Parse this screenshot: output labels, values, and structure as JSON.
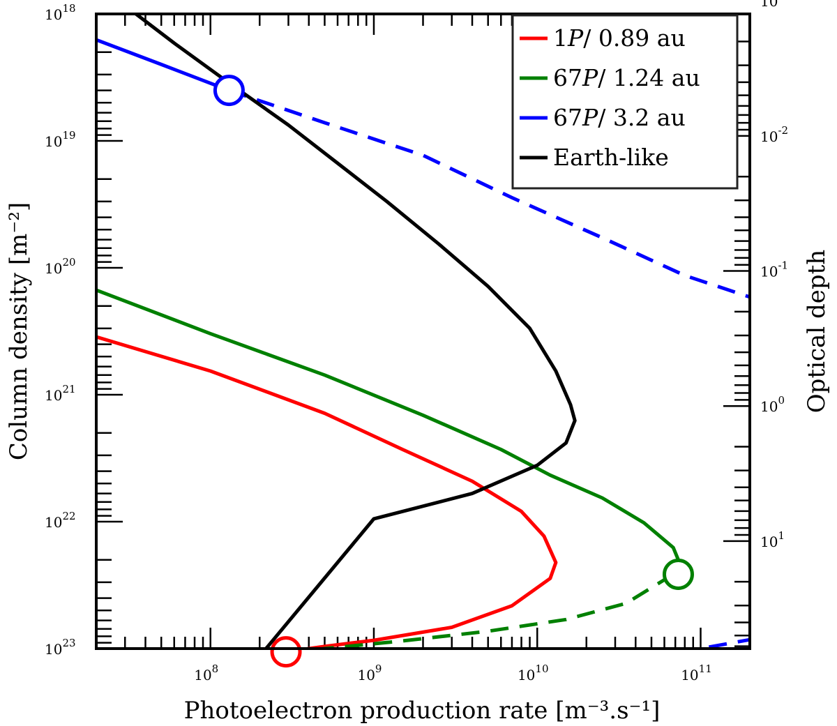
{
  "chart_data": {
    "type": "line",
    "title": "",
    "xlabel": "Photoelectron production rate [m⁻³.s⁻¹]",
    "ylabel": "Column density [m⁻²]",
    "y2label": "Optical depth",
    "xscale": "log",
    "yscale": "log",
    "y_inverted": true,
    "xlim": [
      20000000.0,
      200000000000.0
    ],
    "ylim": [
      1e+18,
      1e+23
    ],
    "y2lim": [
      0.00125,
      62.5
    ],
    "x_ticks": [
      {
        "value": 100000000.0,
        "label": "10",
        "exp": "8"
      },
      {
        "value": 1000000000.0,
        "label": "10",
        "exp": "9"
      },
      {
        "value": 10000000000.0,
        "label": "10",
        "exp": "10"
      },
      {
        "value": 100000000000.0,
        "label": "10",
        "exp": "11"
      }
    ],
    "y_ticks": [
      {
        "value": 1e+18,
        "label": "10",
        "exp": "18"
      },
      {
        "value": 1e+19,
        "label": "10",
        "exp": "19"
      },
      {
        "value": 1e+20,
        "label": "10",
        "exp": "20"
      },
      {
        "value": 1e+21,
        "label": "10",
        "exp": "21"
      },
      {
        "value": 1e+22,
        "label": "10",
        "exp": "22"
      },
      {
        "value": 1e+23,
        "label": "10",
        "exp": "23"
      }
    ],
    "y2_ticks": [
      {
        "value": 0.001,
        "label": "10",
        "exp": "-3"
      },
      {
        "value": 0.01,
        "label": "10",
        "exp": "-2"
      },
      {
        "value": 0.1,
        "label": "10",
        "exp": "-1"
      },
      {
        "value": 1,
        "label": "10",
        "exp": "0"
      },
      {
        "value": 10,
        "label": "10",
        "exp": "1"
      }
    ],
    "grid": false,
    "legend_position": "top-right",
    "series": [
      {
        "name": "1P/ 0.89 au",
        "legend_main": "1",
        "legend_italic": "P",
        "legend_rest": "/ 0.89 au",
        "color": "#ff0000",
        "solid": [
          [
            20000000.0,
            3.5e+20
          ],
          [
            100000000.0,
            6.5e+20
          ],
          [
            500000000.0,
            1.4e+21
          ],
          [
            1500000000.0,
            2.7e+21
          ],
          [
            4000000000.0,
            4.8e+21
          ],
          [
            8000000000.0,
            8.3e+21
          ],
          [
            11000000000.0,
            1.3e+22
          ],
          [
            13000000000.0,
            2.1e+22
          ],
          [
            12000000000.0,
            2.8e+22
          ],
          [
            7000000000.0,
            4.6e+22
          ],
          [
            3000000000.0,
            6.8e+22
          ],
          [
            1000000000.0,
            8.6e+22
          ],
          [
            500000000.0,
            9.6e+22
          ],
          [
            290000000.0,
            1.06e+23
          ]
        ],
        "dashed": [
          [
            290000000.0,
            1.06e+23
          ],
          [
            100000000.0,
            1.25e+23
          ],
          [
            20000000.0,
            1.5e+23
          ]
        ],
        "marker": [
          290000000.0,
          1.06e+23
        ]
      },
      {
        "name": "67P/ 1.24 au",
        "legend_main": "67",
        "legend_italic": "P",
        "legend_rest": "/ 1.24 au",
        "color": "#008000",
        "solid": [
          [
            20000000.0,
            1.5e+20
          ],
          [
            100000000.0,
            3.3e+20
          ],
          [
            500000000.0,
            7e+20
          ],
          [
            2000000000.0,
            1.45e+21
          ],
          [
            6000000000.0,
            2.7e+21
          ],
          [
            12000000000.0,
            4.3e+21
          ],
          [
            25000000000.0,
            6.5e+21
          ],
          [
            45000000000.0,
            1.02e+22
          ],
          [
            68000000000.0,
            1.6e+22
          ],
          [
            73000000000.0,
            2e+22
          ]
        ],
        "dashed": [
          [
            68000000000.0,
            2.6e+22
          ],
          [
            35000000000.0,
            4.4e+22
          ],
          [
            15000000000.0,
            5.9e+22
          ],
          [
            5000000000.0,
            7.3e+22
          ],
          [
            1500000000.0,
            8.7e+22
          ],
          [
            500000000.0,
            1e+23
          ],
          [
            150000000.0,
            1.2e+23
          ],
          [
            50000000.0,
            1.45e+23
          ],
          [
            20000000.0,
            1.7e+23
          ]
        ],
        "marker": [
          73000000000.0,
          2.6e+22
        ]
      },
      {
        "name": "67P/ 3.2 au",
        "legend_main": "67",
        "legend_italic": "P",
        "legend_rest": "/ 3.2 au",
        "color": "#0000ff",
        "solid": [
          [
            20000000.0,
            1.6e+18
          ],
          [
            50000000.0,
            2.5e+18
          ],
          [
            130000000.0,
            4e+18
          ]
        ],
        "dashed": [
          [
            130000000.0,
            4e+18
          ],
          [
            500000000.0,
            7.2e+18
          ],
          [
            2000000000.0,
            1.3e+19
          ],
          [
            7000000000.0,
            2.8e+19
          ],
          [
            25000000000.0,
            5.8e+19
          ],
          [
            80000000000.0,
            1.15e+20
          ],
          [
            200000000000.0,
            1.7e+20
          ]
        ],
        "dashed_lower": [
          [
            20000000.0,
            2.5e+23
          ],
          [
            100000000.0,
            2.23e+23
          ],
          [
            500000000.0,
            1.97e+23
          ],
          [
            2000000000.0,
            1.75e+23
          ],
          [
            8000000000.0,
            1.5e+23
          ],
          [
            30000000000.0,
            1.25e+23
          ],
          [
            100000000000.0,
            1e+23
          ],
          [
            200000000000.0,
            8.5e+22
          ]
        ],
        "marker": [
          130000000.0,
          4e+18
        ]
      },
      {
        "name": "Earth-like",
        "legend_main": "Earth-like",
        "legend_italic": "",
        "legend_rest": "",
        "color": "#000000",
        "solid": [
          [
            35000000.0,
            1e+18
          ],
          [
            60000000.0,
            1.7e+18
          ],
          [
            130000000.0,
            3.5e+18
          ],
          [
            300000000.0,
            7.5e+18
          ],
          [
            600000000.0,
            1.5e+19
          ],
          [
            1200000000.0,
            3e+19
          ],
          [
            2500000000.0,
            6.5e+19
          ],
          [
            5000000000.0,
            1.4e+20
          ],
          [
            9000000000.0,
            3e+20
          ],
          [
            13000000000.0,
            6.5e+20
          ],
          [
            16000000000.0,
            1.2e+21
          ],
          [
            17000000000.0,
            1.6e+21
          ],
          [
            15000000000.0,
            2.4e+21
          ],
          [
            10000000000.0,
            3.6e+21
          ],
          [
            4000000000.0,
            6e+21
          ],
          [
            1000000000.0,
            9.5e+21
          ],
          [
            200000000.0,
            1.15e+23
          ],
          [
            20000000.0,
            1.3e+23
          ]
        ],
        "marker": null
      }
    ]
  }
}
